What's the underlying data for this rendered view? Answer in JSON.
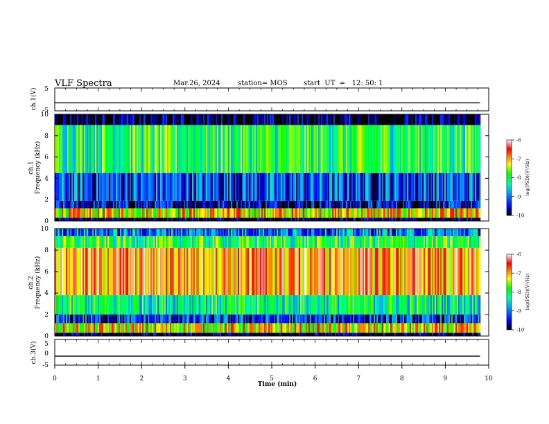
{
  "header": {
    "title": "VLF Spectra",
    "date": "Mar.26, 2024",
    "station": "station= MOS",
    "start_ut": "start  UT  =   12: 50: 1"
  },
  "chart_data": [
    {
      "type": "line",
      "panel": "ch1-waveform",
      "ylabel": "ch.1(V)",
      "yticks": [
        "5",
        "-5"
      ],
      "ylim": [
        -5,
        5
      ],
      "trace_level": -1.5,
      "x": [
        0,
        9.8
      ],
      "xlim": [
        0,
        10
      ]
    },
    {
      "type": "heatmap",
      "panel": "ch1-spectrogram",
      "ylabel": "ch.1\nFrequency (kHz)",
      "ylabel_line1": "ch.1",
      "ylabel_line2": "Frequency (kHz)",
      "ylim": [
        0,
        10
      ],
      "yticks": [
        "0",
        "2",
        "4",
        "6",
        "8",
        "10"
      ],
      "xlim": [
        0,
        10
      ],
      "data_end_min": 9.8,
      "colorbar": {
        "label": "log(PSD)(V²/Hz)",
        "ticks": [
          "-6",
          "-7",
          "-8",
          "-9",
          "-10"
        ],
        "range": [
          -10,
          -6
        ]
      },
      "bands": [
        {
          "f_range": [
            0,
            0.3
          ],
          "log_psd": -10
        },
        {
          "f_range": [
            0.3,
            1.2
          ],
          "log_psd": -7.2
        },
        {
          "f_range": [
            1.2,
            1.9
          ],
          "log_psd": -9.6
        },
        {
          "f_range": [
            1.9,
            4.5
          ],
          "log_psd": -9.2
        },
        {
          "f_range": [
            4.5,
            9.0
          ],
          "log_psd": -8.0
        },
        {
          "f_range": [
            9.0,
            10.0
          ],
          "log_psd": -10
        }
      ]
    },
    {
      "type": "heatmap",
      "panel": "ch2-spectrogram",
      "ylabel_line1": "ch.2",
      "ylabel_line2": "Frequency (kHz)",
      "ylim": [
        0,
        10
      ],
      "yticks": [
        "0",
        "2",
        "4",
        "6",
        "8",
        "10"
      ],
      "xlim": [
        0,
        10
      ],
      "data_end_min": 9.8,
      "colorbar": {
        "label": "log(PSD)(V²/Hz)",
        "ticks": [
          "-6",
          "-7",
          "-8",
          "-9",
          "-10"
        ],
        "range": [
          -10,
          -6
        ]
      },
      "bands": [
        {
          "f_range": [
            0,
            0.3
          ],
          "log_psd": -10
        },
        {
          "f_range": [
            0.3,
            1.2
          ],
          "log_psd": -7.3
        },
        {
          "f_range": [
            1.2,
            2.0
          ],
          "log_psd": -9.4
        },
        {
          "f_range": [
            2.0,
            3.8
          ],
          "log_psd": -8.2
        },
        {
          "f_range": [
            3.8,
            8.2
          ],
          "log_psd": -6.8
        },
        {
          "f_range": [
            8.2,
            9.3
          ],
          "log_psd": -8.0
        },
        {
          "f_range": [
            9.3,
            10.0
          ],
          "log_psd": -9.0
        }
      ]
    },
    {
      "type": "line",
      "panel": "ch3-waveform",
      "ylabel": "ch.3(V)",
      "yticks": [
        "5",
        "0",
        "-5"
      ],
      "ylim": [
        -5,
        5
      ],
      "trace_level": -1.5,
      "x": [
        0,
        9.8
      ],
      "xlim": [
        0,
        10
      ],
      "xlabel": "Time  (min)",
      "xticks": [
        "0",
        "1",
        "2",
        "3",
        "4",
        "5",
        "6",
        "7",
        "8",
        "9",
        "10"
      ]
    }
  ]
}
